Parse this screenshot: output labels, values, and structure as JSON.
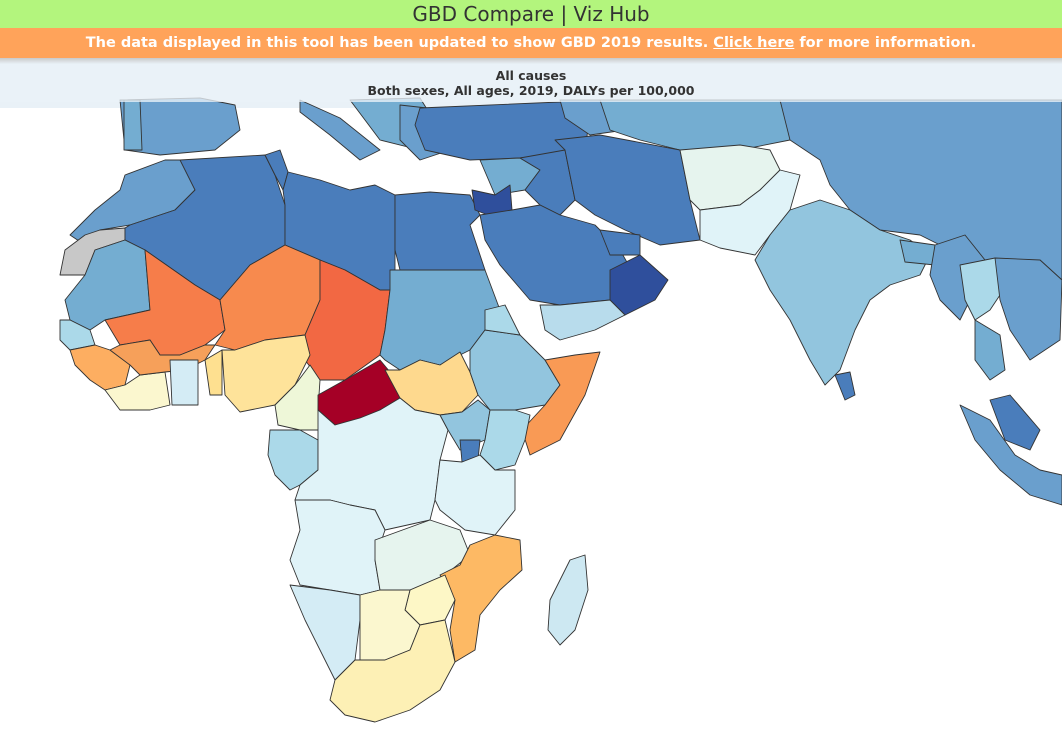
{
  "header": {
    "title": "GBD Compare | Viz Hub"
  },
  "banner": {
    "text_before": "The data displayed in this tool has been updated to show GBD 2019 results. ",
    "link_text": "Click here",
    "text_after": " for more information."
  },
  "map": {
    "title": "All causes",
    "subtitle": "Both sexes, All ages, 2019, DALYs per 100,000"
  },
  "colors": {
    "header_bg": "#b3f57d",
    "banner_bg": "#ffa35a",
    "highest": "#a50026",
    "high": "#f46d43",
    "mid_high": "#fdae61",
    "mid": "#fee090",
    "mid_low": "#e0f3f8",
    "low": "#abd9e9",
    "lower": "#74add1",
    "lowest": "#4575b4",
    "no_data": "#c8c8c8"
  }
}
